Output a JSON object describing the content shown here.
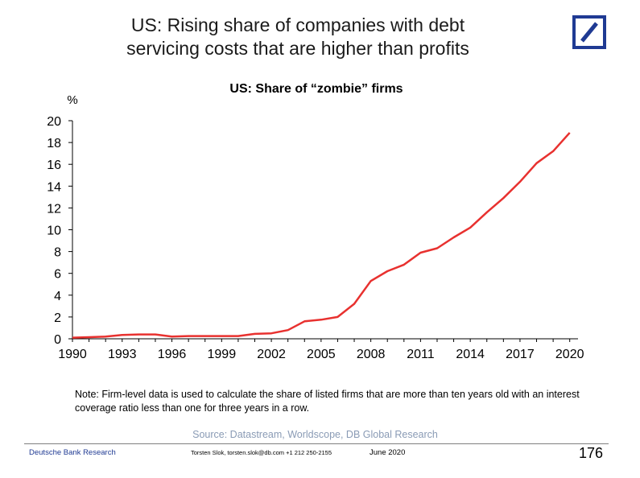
{
  "headline": {
    "line1": "US: Rising share of companies with debt",
    "line2": "servicing costs that are higher than profits"
  },
  "brand": {
    "logo_color": "#1f3a93",
    "logo_icon": "deutsche-bank-slash-logo"
  },
  "chart_data": {
    "type": "line",
    "title": "US: Share of “zombie” firms",
    "ylabel": "%",
    "xlabel": "",
    "ylim": [
      0,
      20
    ],
    "xlim": [
      1990,
      2020.5
    ],
    "yticks": [
      0,
      2,
      4,
      6,
      8,
      10,
      12,
      14,
      16,
      18,
      20
    ],
    "xticks": [
      1990,
      1993,
      1996,
      1999,
      2002,
      2005,
      2008,
      2011,
      2014,
      2017,
      2020
    ],
    "line_color": "#e8312f",
    "grid": false,
    "series": [
      {
        "x": [
          1990,
          1991,
          1992,
          1993,
          1994,
          1995,
          1996,
          1997,
          1998,
          1999,
          2000,
          2001,
          2002,
          2003,
          2004,
          2005,
          2006,
          2007,
          2008,
          2009,
          2010,
          2011,
          2012,
          2013,
          2014,
          2015,
          2016,
          2017,
          2018,
          2019,
          2020
        ],
        "values": [
          0.1,
          0.15,
          0.2,
          0.35,
          0.4,
          0.4,
          0.2,
          0.25,
          0.25,
          0.25,
          0.25,
          0.45,
          0.5,
          0.8,
          1.6,
          1.75,
          2.0,
          3.2,
          5.3,
          6.2,
          6.8,
          7.9,
          8.3,
          9.3,
          10.2,
          11.6,
          12.9,
          14.4,
          16.1,
          17.2,
          18.9
        ]
      }
    ]
  },
  "note": "Note: Firm-level data is used to calculate the share of listed firms that are more than ten years old with an interest coverage ratio less than one for three years in a row.",
  "source": "Source: Datastream, Worldscope, DB Global Research",
  "footer": {
    "org": "Deutsche Bank Research",
    "contact": "Torsten Slok, torsten.slok@db.com  +1 212 250-2155",
    "date": "June 2020",
    "page": "176"
  }
}
